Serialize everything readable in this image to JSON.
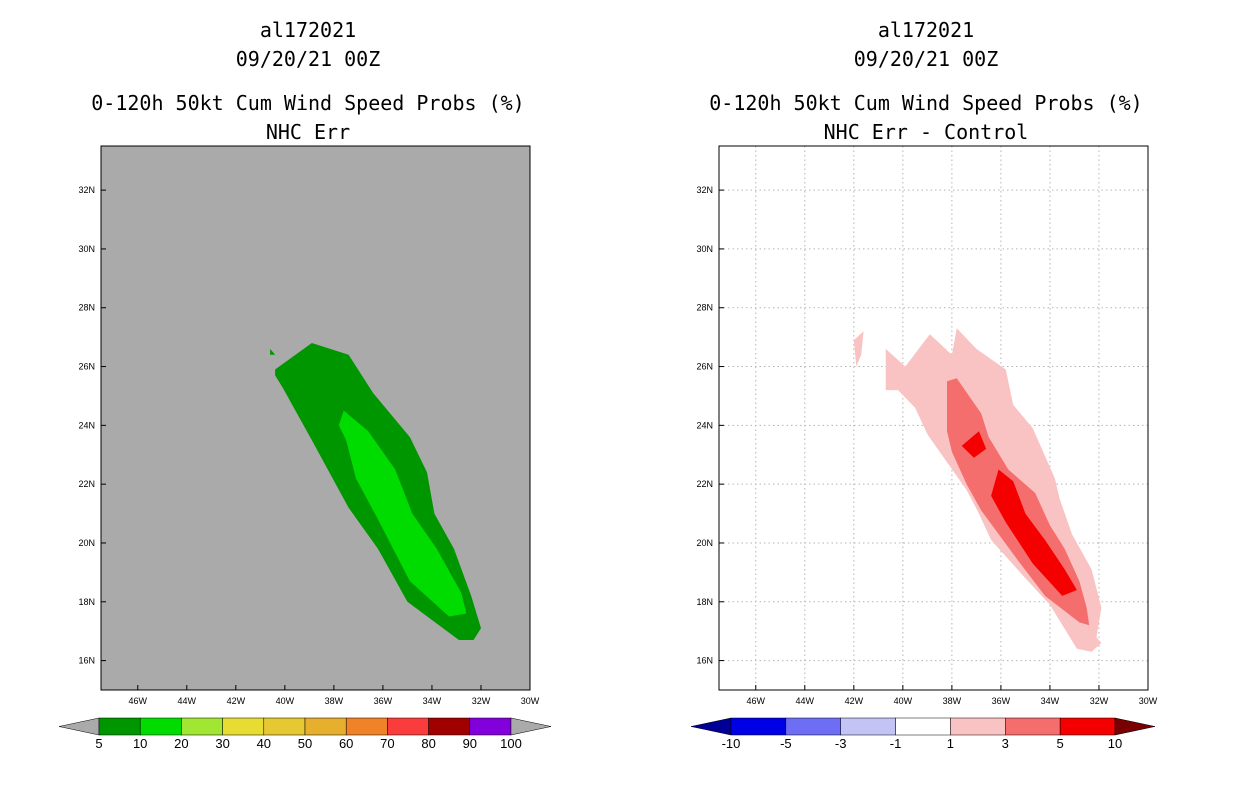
{
  "chart_data": [
    {
      "type": "contour-map",
      "title": {
        "storm": "al172021",
        "time": "09/20/21 00Z",
        "product": "0-120h 50kt Cum Wind Speed Probs (%)",
        "subtitle": "NHC Err"
      },
      "background_color": "#aaaaaa",
      "grid": false,
      "x_ticks": [
        "46W",
        "44W",
        "42W",
        "40W",
        "38W",
        "36W",
        "34W",
        "32W",
        "30W"
      ],
      "y_ticks": [
        "32N",
        "30N",
        "28N",
        "26N",
        "24N",
        "22N",
        "20N",
        "18N",
        "16N"
      ],
      "xlim": [
        -47.5,
        -30
      ],
      "ylim": [
        15,
        33.5
      ],
      "colorbar": {
        "labels": [
          "5",
          "10",
          "20",
          "30",
          "40",
          "50",
          "60",
          "70",
          "80",
          "90",
          "100"
        ],
        "colors": [
          "#009600",
          "#00dc00",
          "#a0e632",
          "#e6dc32",
          "#e6c832",
          "#e6af2d",
          "#f08228",
          "#fa3c3c",
          "#a00000",
          "#8200dc"
        ],
        "low_end": "#aaaaaa",
        "high_end": "#aaaaaa"
      },
      "contours": [
        {
          "level": "5-10",
          "color": "#009600",
          "polygon": [
            [
              -40.4,
              25.9
            ],
            [
              -38.9,
              26.8
            ],
            [
              -37.4,
              26.4
            ],
            [
              -36.4,
              25.1
            ],
            [
              -34.9,
              23.6
            ],
            [
              -34.2,
              22.4
            ],
            [
              -33.9,
              21.0
            ],
            [
              -33.1,
              19.8
            ],
            [
              -32.4,
              18.2
            ],
            [
              -32.0,
              17.1
            ],
            [
              -32.3,
              16.7
            ],
            [
              -32.9,
              16.7
            ],
            [
              -35.0,
              18.0
            ],
            [
              -36.2,
              19.8
            ],
            [
              -37.4,
              21.2
            ],
            [
              -38.9,
              23.5
            ],
            [
              -40.1,
              25.3
            ],
            [
              -40.4,
              25.7
            ]
          ]
        },
        {
          "level": "5-10",
          "color": "#009600",
          "polygon": [
            [
              -40.6,
              26.6
            ],
            [
              -40.4,
              26.4
            ],
            [
              -40.6,
              26.4
            ]
          ]
        },
        {
          "level": "10-20",
          "color": "#00dc00",
          "polygon": [
            [
              -37.6,
              24.5
            ],
            [
              -36.6,
              23.8
            ],
            [
              -35.5,
              22.5
            ],
            [
              -34.8,
              21.0
            ],
            [
              -33.8,
              19.8
            ],
            [
              -32.8,
              18.3
            ],
            [
              -32.6,
              17.6
            ],
            [
              -33.3,
              17.5
            ],
            [
              -34.9,
              18.7
            ],
            [
              -36.2,
              20.8
            ],
            [
              -37.1,
              22.2
            ],
            [
              -37.5,
              23.5
            ],
            [
              -37.8,
              24.0
            ]
          ]
        }
      ]
    },
    {
      "type": "contour-map",
      "title": {
        "storm": "al172021",
        "time": "09/20/21 00Z",
        "product": "0-120h 50kt Cum Wind Speed Probs (%)",
        "subtitle": "NHC Err - Control"
      },
      "background_color": "#ffffff",
      "grid": true,
      "x_ticks": [
        "46W",
        "44W",
        "42W",
        "40W",
        "38W",
        "36W",
        "34W",
        "32W",
        "30W"
      ],
      "y_ticks": [
        "32N",
        "30N",
        "28N",
        "26N",
        "24N",
        "22N",
        "20N",
        "18N",
        "16N"
      ],
      "xlim": [
        -47.5,
        -30
      ],
      "ylim": [
        15,
        33.5
      ],
      "colorbar": {
        "labels": [
          "-10",
          "-5",
          "-3",
          "-1",
          "1",
          "3",
          "5",
          "10"
        ],
        "colors": [
          "#0000e6",
          "#6e6ef5",
          "#c3c3f5",
          "#ffffff",
          "#fac3c3",
          "#f56e6e",
          "#f50000"
        ],
        "low_end": "#000096",
        "high_end": "#780000"
      },
      "contours": [
        {
          "level": "1-3",
          "color": "#fac3c3",
          "polygon": [
            [
              -40.7,
              26.6
            ],
            [
              -39.9,
              26.0
            ],
            [
              -38.9,
              27.1
            ],
            [
              -38.0,
              26.4
            ],
            [
              -37.8,
              27.3
            ],
            [
              -37.0,
              26.6
            ],
            [
              -35.8,
              25.9
            ],
            [
              -35.5,
              24.7
            ],
            [
              -34.7,
              23.9
            ],
            [
              -33.8,
              22.2
            ],
            [
              -33.6,
              21.5
            ],
            [
              -33.1,
              20.3
            ],
            [
              -32.3,
              19.1
            ],
            [
              -31.9,
              17.8
            ],
            [
              -32.1,
              16.8
            ],
            [
              -31.9,
              16.6
            ],
            [
              -32.3,
              16.3
            ],
            [
              -32.9,
              16.4
            ],
            [
              -34.0,
              17.9
            ],
            [
              -35.0,
              18.8
            ],
            [
              -36.4,
              20.1
            ],
            [
              -36.9,
              21.0
            ],
            [
              -37.4,
              21.8
            ],
            [
              -38.5,
              23.1
            ],
            [
              -39.0,
              23.7
            ],
            [
              -39.5,
              24.6
            ],
            [
              -40.2,
              25.2
            ],
            [
              -40.7,
              25.2
            ]
          ]
        },
        {
          "level": "1-3",
          "color": "#fac3c3",
          "polygon": [
            [
              -42.0,
              26.9
            ],
            [
              -41.6,
              27.2
            ],
            [
              -41.7,
              26.4
            ],
            [
              -41.9,
              26.0
            ]
          ]
        },
        {
          "level": "3-5",
          "color": "#f56e6e",
          "polygon": [
            [
              -38.2,
              25.5
            ],
            [
              -37.8,
              25.6
            ],
            [
              -36.8,
              24.4
            ],
            [
              -36.5,
              23.6
            ],
            [
              -35.7,
              22.5
            ],
            [
              -34.6,
              21.7
            ],
            [
              -34.0,
              20.6
            ],
            [
              -33.4,
              19.8
            ],
            [
              -32.8,
              18.7
            ],
            [
              -32.5,
              17.8
            ],
            [
              -32.4,
              17.2
            ],
            [
              -32.8,
              17.3
            ],
            [
              -34.2,
              18.2
            ],
            [
              -35.3,
              19.4
            ],
            [
              -36.8,
              21.1
            ],
            [
              -37.4,
              22.0
            ],
            [
              -38.0,
              23.1
            ],
            [
              -38.2,
              23.8
            ]
          ]
        },
        {
          "level": "5-10",
          "color": "#f50000",
          "polygon": [
            [
              -36.1,
              22.5
            ],
            [
              -35.5,
              22.1
            ],
            [
              -35.0,
              21.0
            ],
            [
              -34.2,
              20.1
            ],
            [
              -33.4,
              19.1
            ],
            [
              -32.9,
              18.4
            ],
            [
              -33.5,
              18.2
            ],
            [
              -34.7,
              19.3
            ],
            [
              -35.8,
              20.7
            ],
            [
              -36.4,
              21.6
            ]
          ]
        },
        {
          "level": "5-10",
          "color": "#f50000",
          "polygon": [
            [
              -37.6,
              23.3
            ],
            [
              -36.9,
              23.8
            ],
            [
              -36.6,
              23.2
            ],
            [
              -37.1,
              22.9
            ]
          ]
        }
      ]
    }
  ]
}
